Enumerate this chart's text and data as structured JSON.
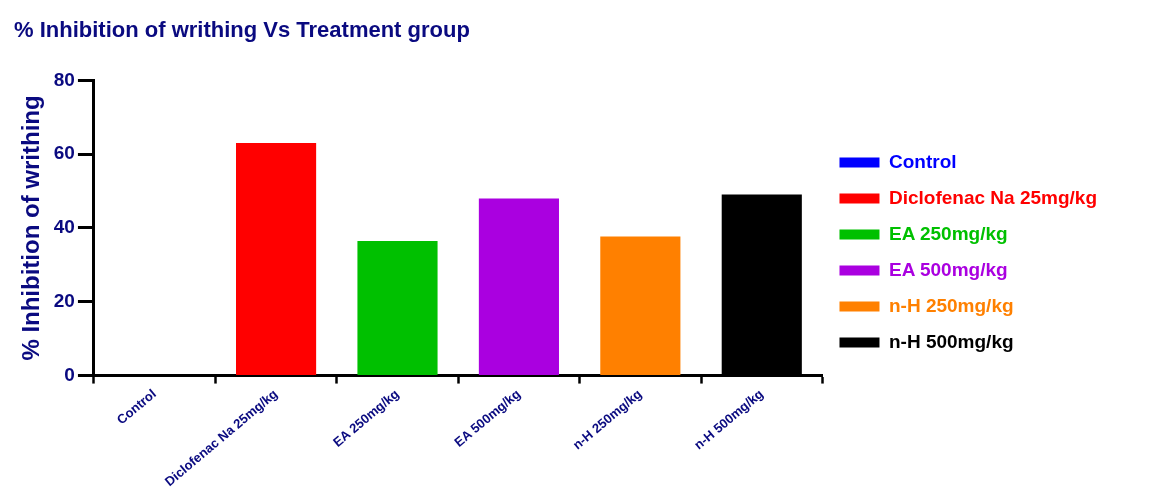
{
  "chart_data": {
    "type": "bar",
    "title": "% Inhibition of writhing Vs Treatment group",
    "ylabel": "% Inhibition of writhing",
    "categories": [
      "Control",
      "Diclofenac Na 25mg/kg",
      "EA 250mg/kg",
      "EA 500mg/kg",
      "n-H 250mg/kg",
      "n-H 500mg/kg"
    ],
    "series": [
      {
        "name": "Control",
        "color": "#0000ff",
        "values": [
          0,
          null,
          null,
          null,
          null,
          null
        ]
      },
      {
        "name": "Diclofenac Na 25mg/kg",
        "color": "#ff0000",
        "values": [
          null,
          63,
          null,
          null,
          null,
          null
        ]
      },
      {
        "name": "EA 250mg/kg",
        "color": "#00c000",
        "values": [
          null,
          null,
          36.5,
          null,
          null,
          null
        ]
      },
      {
        "name": "EA 500mg/kg",
        "color": "#aa00e0",
        "values": [
          null,
          null,
          null,
          48,
          null,
          null
        ]
      },
      {
        "name": "n-H 250mg/kg",
        "color": "#ff8000",
        "values": [
          null,
          null,
          null,
          null,
          37.7,
          null
        ]
      },
      {
        "name": "n-H 500mg/kg",
        "color": "#000000",
        "values": [
          null,
          null,
          null,
          null,
          null,
          49.1
        ]
      }
    ],
    "ylim": [
      0,
      80
    ],
    "yticks": [
      0,
      20,
      40,
      60,
      80
    ],
    "grid": false,
    "legend": "right"
  }
}
